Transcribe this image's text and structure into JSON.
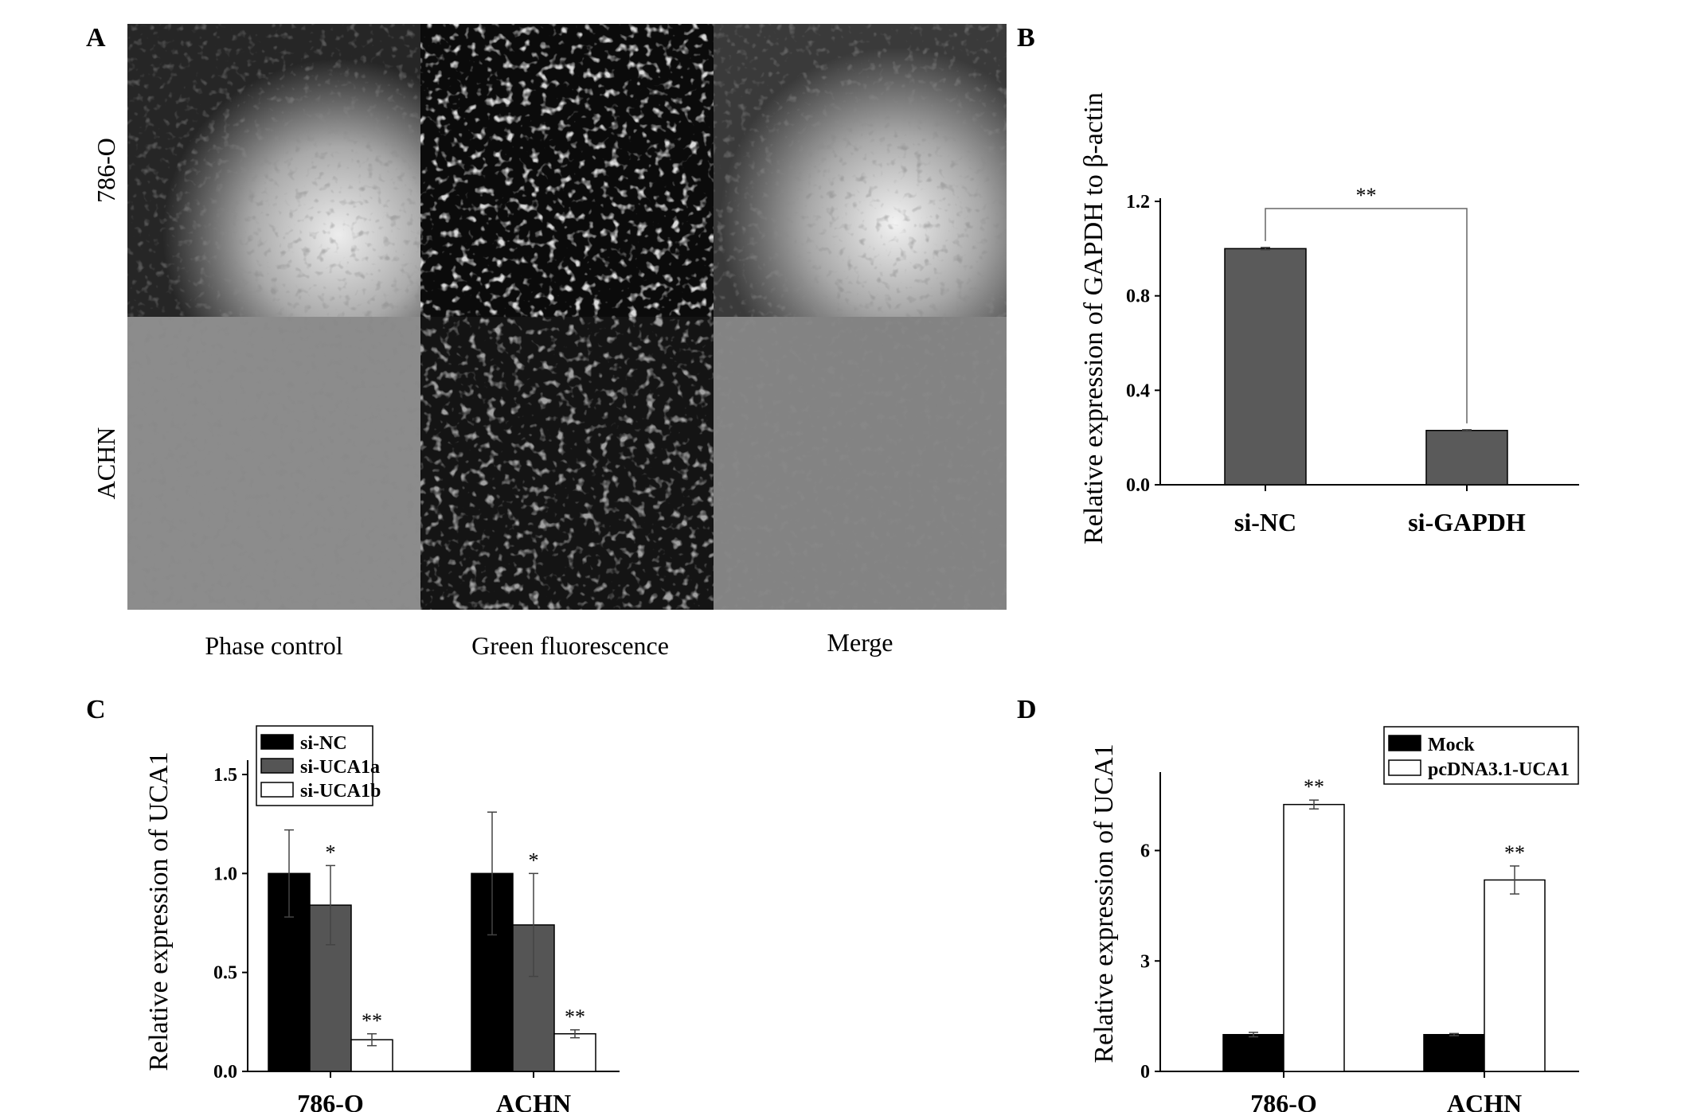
{
  "panel_a": {
    "letter": "A",
    "rows": [
      "786-O",
      "ACHN"
    ],
    "columns": [
      "Phase control",
      "Green fluorescence",
      "Merge"
    ]
  },
  "colors": {
    "si_nc": "#000000",
    "si_uca1a": "#555555",
    "si_uca1b": "#ffffff",
    "panel_b_bar": "#5a5a5a",
    "mock": "#000000",
    "pcdna": "#ffffff"
  },
  "chart_data": [
    {
      "panel": "B",
      "type": "bar",
      "ylabel": "Relative expression of GAPDH to β-actin",
      "categories": [
        "si-NC",
        "si-GAPDH"
      ],
      "values": [
        1.0,
        0.23
      ],
      "errors": [
        0.005,
        0.003
      ],
      "ylim": [
        0,
        1.2
      ],
      "yticks": [
        "0.0",
        "0.4",
        "0.8",
        "1.2"
      ],
      "significance": "**"
    },
    {
      "panel": "C",
      "type": "bar",
      "ylabel": "Relative expression of UCA1",
      "categories": [
        "786-O",
        "ACHN"
      ],
      "series": [
        {
          "name": "si-NC",
          "values": [
            1.0,
            1.0
          ],
          "errors": [
            0.22,
            0.31
          ],
          "marks": [
            "",
            ""
          ]
        },
        {
          "name": "si-UCA1a",
          "values": [
            0.84,
            0.74
          ],
          "errors": [
            0.2,
            0.26
          ],
          "marks": [
            "*",
            "*"
          ]
        },
        {
          "name": "si-UCA1b",
          "values": [
            0.16,
            0.19
          ],
          "errors": [
            0.03,
            0.02
          ],
          "marks": [
            "**",
            "**"
          ]
        }
      ],
      "ylim": [
        0,
        1.5
      ],
      "yticks": [
        "0.0",
        "0.5",
        "1.0",
        "1.5"
      ],
      "legend": "top-left"
    },
    {
      "panel": "D",
      "type": "bar",
      "ylabel": "Relative expression of UCA1",
      "categories": [
        "786-O",
        "ACHN"
      ],
      "series": [
        {
          "name": "Mock",
          "values": [
            1.0,
            1.0
          ],
          "errors": [
            0.06,
            0.03
          ],
          "marks": [
            "",
            ""
          ]
        },
        {
          "name": "pcDNA3.1-UCA1",
          "values": [
            7.25,
            5.2
          ],
          "errors": [
            0.12,
            0.38
          ],
          "marks": [
            "**",
            "**"
          ]
        }
      ],
      "ylim": [
        0,
        8
      ],
      "yticks": [
        "0",
        "3",
        "6"
      ],
      "legend": "top-right"
    }
  ]
}
